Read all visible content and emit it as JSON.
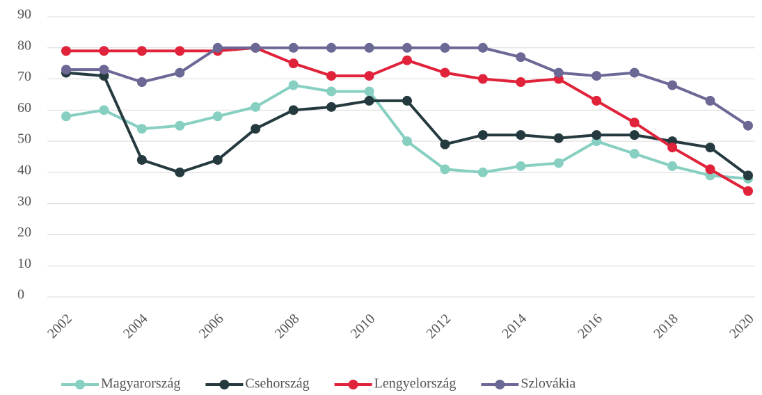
{
  "chart_data": {
    "type": "line",
    "x": [
      2002,
      2003,
      2004,
      2005,
      2006,
      2007,
      2008,
      2009,
      2010,
      2011,
      2012,
      2013,
      2014,
      2015,
      2016,
      2017,
      2018,
      2019,
      2020
    ],
    "series": [
      {
        "name": "Magyarország",
        "color": "#86cfc1",
        "values": [
          58,
          60,
          54,
          55,
          58,
          61,
          68,
          66,
          66,
          50,
          41,
          40,
          42,
          43,
          50,
          46,
          42,
          39,
          38
        ]
      },
      {
        "name": "Csehország",
        "color": "#253a3f",
        "values": [
          72,
          71,
          44,
          40,
          44,
          54,
          60,
          61,
          63,
          63,
          49,
          52,
          52,
          51,
          52,
          52,
          50,
          48,
          39
        ]
      },
      {
        "name": "Lengyelország",
        "color": "#e0223a",
        "values": [
          79,
          79,
          79,
          79,
          79,
          80,
          75,
          71,
          71,
          76,
          72,
          70,
          69,
          70,
          63,
          56,
          48,
          41,
          34
        ]
      },
      {
        "name": "Szlovákia",
        "color": "#6b6896",
        "values": [
          73,
          73,
          69,
          72,
          80,
          80,
          80,
          80,
          80,
          80,
          80,
          80,
          77,
          72,
          71,
          72,
          68,
          63,
          55
        ]
      }
    ],
    "xlim": [
      2002,
      2020
    ],
    "xticks": [
      2002,
      2004,
      2006,
      2008,
      2010,
      2012,
      2014,
      2016,
      2018,
      2020
    ],
    "ylim": [
      0,
      90
    ],
    "yticks": [
      0,
      10,
      20,
      30,
      40,
      50,
      60,
      70,
      80,
      90
    ],
    "grid": true,
    "legend": "bottom"
  }
}
